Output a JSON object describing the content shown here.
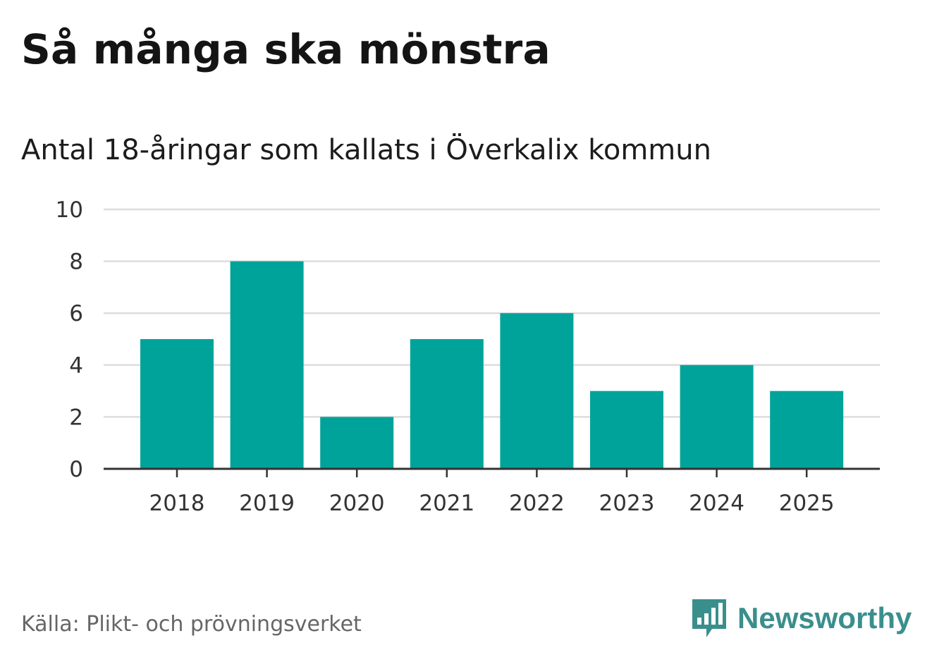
{
  "title": "Så många ska mönstra",
  "subtitle": "Antal 18-åringar som kallats i Överkalix kommun",
  "source": "Källa: Plikt- och prövningsverket",
  "brand": {
    "name": "Newsworthy",
    "icon": "bar-chart-speech-bubble-icon",
    "color": "#3a8f8d"
  },
  "colors": {
    "bar": "#00a39a",
    "grid": "#dddddd",
    "axis": "#333333"
  },
  "chart_data": {
    "type": "bar",
    "categories": [
      "2018",
      "2019",
      "2020",
      "2021",
      "2022",
      "2023",
      "2024",
      "2025"
    ],
    "values": [
      5,
      8,
      2,
      5,
      6,
      3,
      4,
      3
    ],
    "yticks": [
      0,
      2,
      4,
      6,
      8,
      10
    ],
    "ylim": [
      0,
      10
    ],
    "grid": true,
    "xlabel": "",
    "ylabel": ""
  }
}
